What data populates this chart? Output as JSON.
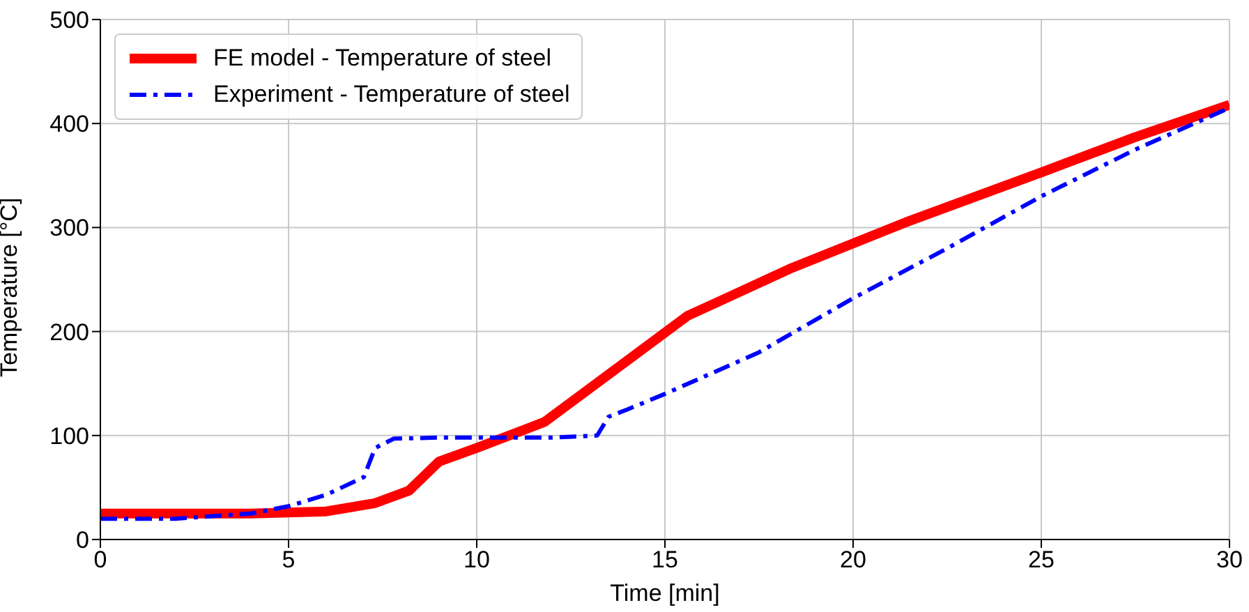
{
  "chart_data": {
    "type": "line",
    "xlabel": "Time [min]",
    "ylabel": "Temperature [°C]",
    "xlim": [
      0,
      30
    ],
    "ylim": [
      0,
      500
    ],
    "xticks": [
      0,
      5,
      10,
      15,
      20,
      25,
      30
    ],
    "yticks": [
      0,
      100,
      200,
      300,
      400,
      500
    ],
    "grid": true,
    "legend": "top left",
    "marker": "none",
    "series": [
      {
        "name": "FE model - Temperature of steel",
        "color": "#ff0000",
        "line_style": "solid",
        "x": [
          0,
          4,
          6,
          7.3,
          8.2,
          9,
          10,
          11.8,
          15.6,
          18.3,
          21.4,
          25,
          27.5,
          30
        ],
        "values": [
          25,
          25,
          27,
          35,
          47,
          75,
          88,
          113,
          215,
          260,
          305,
          353,
          387,
          418
        ]
      },
      {
        "name": "Experiment - Temperature of steel",
        "color": "#0000ff",
        "line_style": "dashdot",
        "x": [
          0,
          2,
          4,
          5,
          6,
          7,
          7.3,
          7.8,
          9,
          12,
          13.2,
          13.5,
          14,
          15,
          17.5,
          20,
          22.5,
          25,
          27.5,
          30
        ],
        "values": [
          20,
          20,
          25,
          32,
          43,
          60,
          88,
          97,
          98,
          98,
          100,
          118,
          125,
          140,
          180,
          232,
          280,
          330,
          375,
          415
        ]
      }
    ]
  }
}
